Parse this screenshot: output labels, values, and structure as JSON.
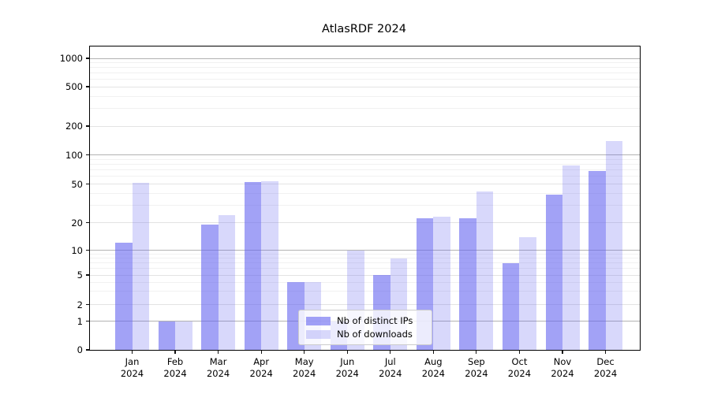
{
  "title": "AtlasRDF 2024",
  "legend": {
    "items": [
      {
        "label": "Nb of distinct IPs"
      },
      {
        "label": "Nb of downloads"
      }
    ]
  },
  "colors": {
    "bar_distinct_ips": "rgba(100,100,240,0.6)",
    "bar_downloads": "rgba(100,100,240,0.25)",
    "bar_distinct_ips_flat": "#a2a2f6",
    "bar_downloads_flat": "#d8d8fb",
    "grid_decade": "#b2b2b2",
    "grid_labeled": "#e3e3e3",
    "grid_minor": "#f1f1f1"
  },
  "chart_data": {
    "type": "bar",
    "title": "AtlasRDF 2024",
    "categories": [
      "Jan 2024",
      "Feb 2024",
      "Mar 2024",
      "Apr 2024",
      "May 2024",
      "Jun 2024",
      "Jul 2024",
      "Aug 2024",
      "Sep 2024",
      "Oct 2024",
      "Nov 2024",
      "Dec 2024"
    ],
    "series": [
      {
        "name": "Nb of distinct IPs",
        "values": [
          12,
          1,
          19,
          52,
          4,
          1,
          5,
          22,
          22,
          7,
          39,
          68
        ]
      },
      {
        "name": "Nb of downloads",
        "values": [
          51,
          1,
          24,
          53,
          4,
          10,
          8,
          23,
          42,
          14,
          77,
          140
        ]
      }
    ],
    "xlabel": "",
    "ylabel": "",
    "yscale": "symlog",
    "ylim": [
      0,
      1300
    ],
    "y_ticks": [
      0,
      1,
      2,
      5,
      10,
      20,
      50,
      100,
      200,
      500,
      1000
    ],
    "y_minor_ticks": [
      3,
      4,
      6,
      7,
      8,
      9,
      30,
      40,
      60,
      70,
      80,
      90,
      300,
      400,
      600,
      700,
      800,
      900
    ],
    "grid": true,
    "legend_position": "lower center, inside plot"
  }
}
